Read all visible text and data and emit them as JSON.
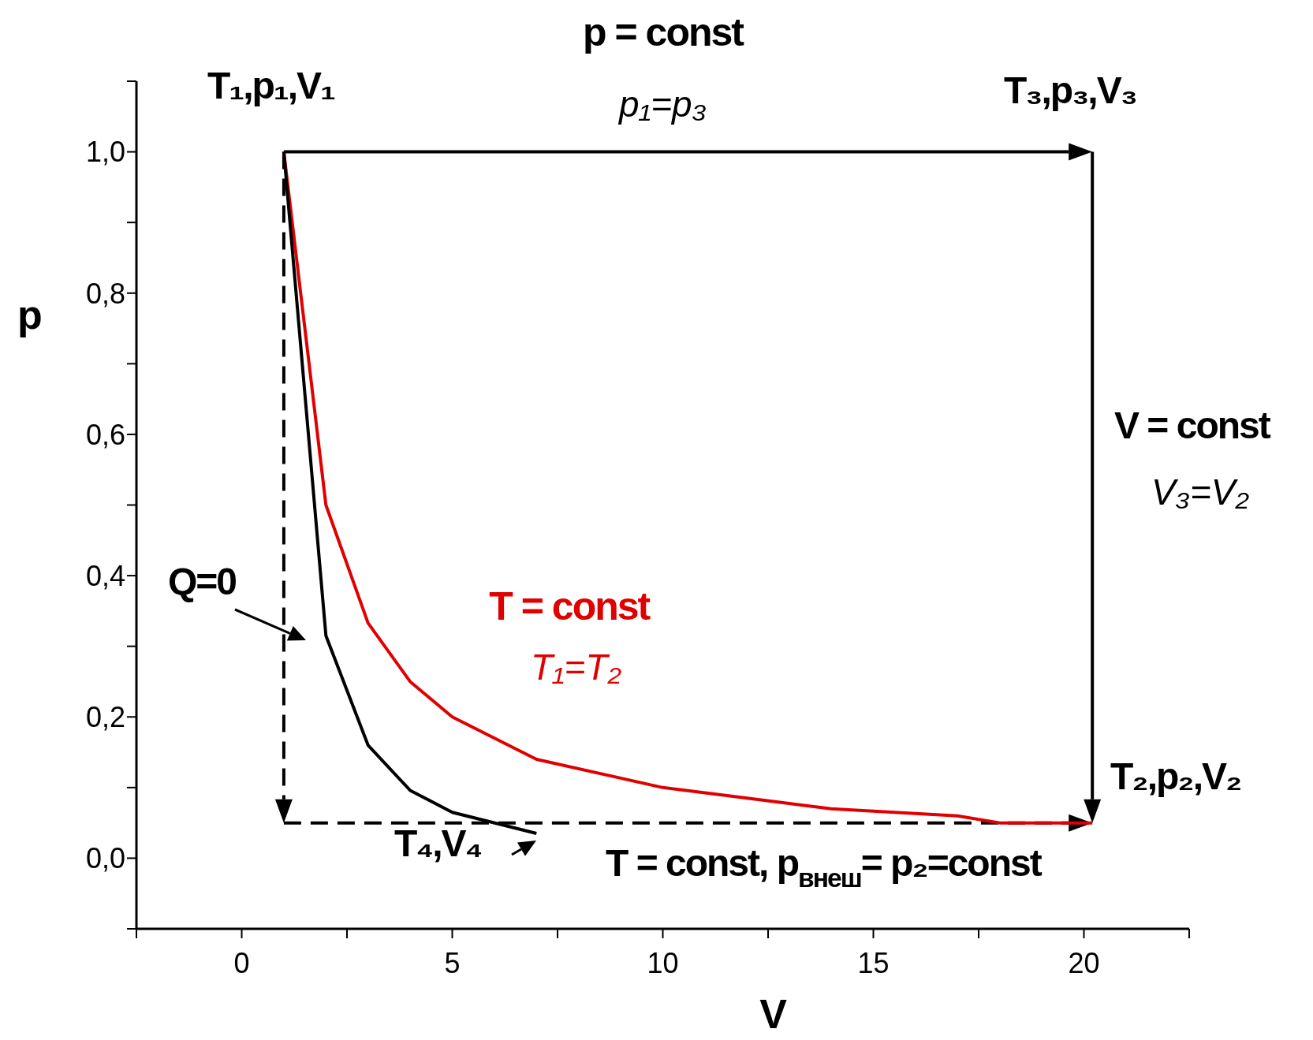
{
  "chart_data": {
    "type": "line",
    "title": "p = const",
    "subtitle": "p₁=p₃",
    "xlabel": "V",
    "ylabel": "p",
    "xlim": [
      -2.5,
      22.5
    ],
    "xticks": [
      {
        "value": -2.5,
        "label": null
      },
      {
        "value": 0,
        "label": "0"
      },
      {
        "value": 2.5,
        "label": null
      },
      {
        "value": 5,
        "label": "5"
      },
      {
        "value": 7.5,
        "label": null
      },
      {
        "value": 10,
        "label": "10"
      },
      {
        "value": 12.5,
        "label": null
      },
      {
        "value": 15,
        "label": "15"
      },
      {
        "value": 17.5,
        "label": null
      },
      {
        "value": 20,
        "label": "20"
      },
      {
        "value": 22.5,
        "label": null
      }
    ],
    "ylim": [
      -0.1,
      1.1
    ],
    "yticks": [
      {
        "value": -0.1,
        "label": null
      },
      {
        "value": 0,
        "label": "0,0"
      },
      {
        "value": 0.1,
        "label": null
      },
      {
        "value": 0.2,
        "label": "0,2"
      },
      {
        "value": 0.3,
        "label": null
      },
      {
        "value": 0.4,
        "label": "0,4"
      },
      {
        "value": 0.5,
        "label": null
      },
      {
        "value": 0.6,
        "label": "0,6"
      },
      {
        "value": 0.7,
        "label": null
      },
      {
        "value": 0.8,
        "label": "0,8"
      },
      {
        "value": 0.9,
        "label": null
      },
      {
        "value": 1.0,
        "label": "1,0"
      },
      {
        "value": 1.1,
        "label": null
      }
    ],
    "marker": "none",
    "series": [
      {
        "name": "T = const",
        "color": "#e00000",
        "x": [
          1,
          2,
          3,
          4,
          5,
          7,
          10,
          14,
          17,
          18,
          20.2
        ],
        "values": [
          1.0,
          0.5,
          0.333,
          0.25,
          0.2,
          0.14,
          0.1,
          0.07,
          0.06,
          0.05,
          0.05
        ]
      },
      {
        "color": "#000000",
        "x": [
          1,
          2,
          3,
          4,
          5,
          7
        ],
        "values": [
          1.0,
          0.315,
          0.16,
          0.096,
          0.065,
          0.035
        ]
      }
    ],
    "annotations": [
      "T₁,p₁,V₁",
      "T₃,p₃,V₃",
      "V = const",
      "V₃=V₂",
      "T₂,p₂,V₂",
      "T₁=T₂",
      "Q=0",
      "T₄,V₄",
      "T = const, p$_{внеш}$= p₂=const"
    ]
  }
}
